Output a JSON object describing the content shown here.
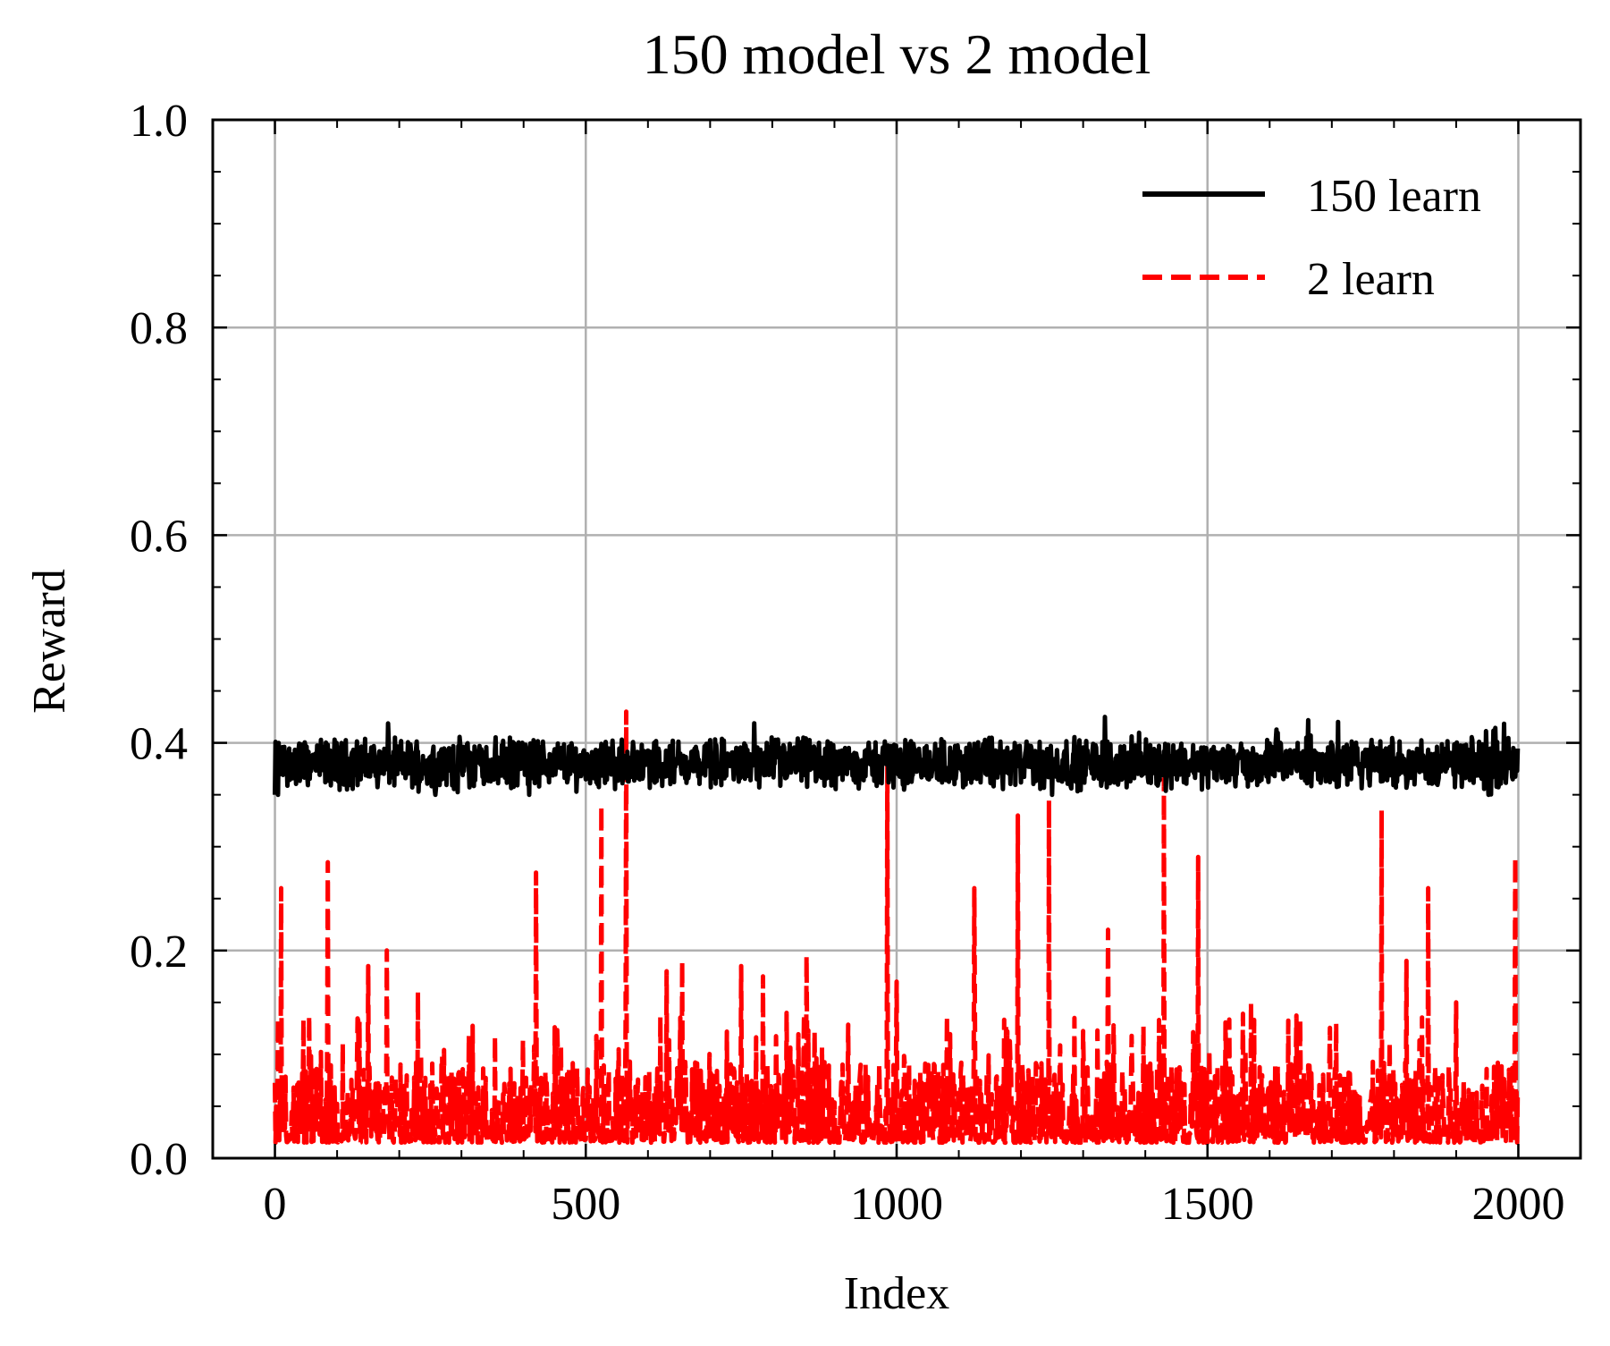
{
  "chart_data": {
    "type": "line",
    "title": "150 model vs 2 model",
    "xlabel": "Index",
    "ylabel": "Reward",
    "xlim": [
      -100,
      2100
    ],
    "ylim": [
      0.0,
      1.0
    ],
    "xticks": [
      "0",
      "500",
      "1000",
      "1500",
      "2000"
    ],
    "xtick_values": [
      0,
      500,
      1000,
      1500,
      2000
    ],
    "yticks": [
      "0.0",
      "0.2",
      "0.4",
      "0.6",
      "0.8",
      "1.0"
    ],
    "ytick_values": [
      0.0,
      0.2,
      0.4,
      0.6,
      0.8,
      1.0
    ],
    "grid": true,
    "legend_position": "top-right",
    "series": [
      {
        "name": "150 learn",
        "color": "#000000",
        "style": "solid",
        "n_points": 2000,
        "mean": 0.38,
        "noise_range": [
          0.35,
          0.425
        ],
        "start_value": 0.34,
        "notable_points": [
          [
            1335,
            0.425
          ],
          [
            1250,
            0.345
          ],
          [
            5,
            0.34
          ]
        ]
      },
      {
        "name": "2 learn",
        "color": "#ff0000",
        "style": "dashed",
        "n_points": 2000,
        "baseline_range": [
          0.015,
          0.08
        ],
        "spikes": [
          [
            10,
            0.26
          ],
          [
            85,
            0.285
          ],
          [
            150,
            0.185
          ],
          [
            180,
            0.2
          ],
          [
            230,
            0.16
          ],
          [
            420,
            0.275
          ],
          [
            525,
            0.34
          ],
          [
            565,
            0.43
          ],
          [
            630,
            0.18
          ],
          [
            655,
            0.19
          ],
          [
            750,
            0.185
          ],
          [
            785,
            0.175
          ],
          [
            855,
            0.195
          ],
          [
            985,
            0.38
          ],
          [
            1000,
            0.17
          ],
          [
            1125,
            0.26
          ],
          [
            1195,
            0.33
          ],
          [
            1245,
            0.345
          ],
          [
            1340,
            0.22
          ],
          [
            1430,
            0.365
          ],
          [
            1485,
            0.29
          ],
          [
            1570,
            0.15
          ],
          [
            1780,
            0.335
          ],
          [
            1820,
            0.19
          ],
          [
            1855,
            0.26
          ],
          [
            1900,
            0.15
          ],
          [
            1995,
            0.29
          ]
        ]
      }
    ]
  }
}
